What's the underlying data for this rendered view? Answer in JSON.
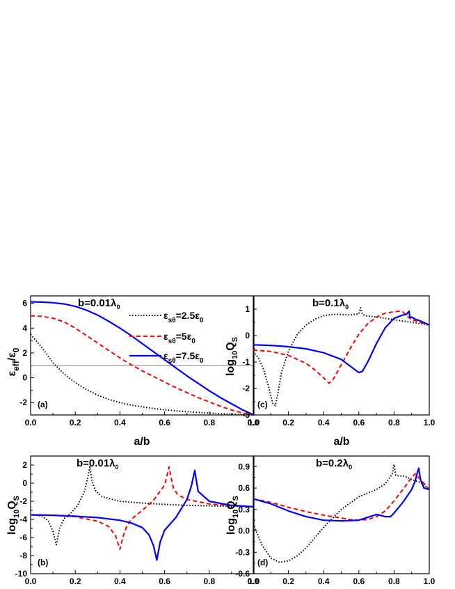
{
  "colors": {
    "series_1": "#000000",
    "series_2": "#ff0000",
    "series_3": "#0000ff",
    "refline": "#808080"
  },
  "legend": [
    {
      "sym": "ε",
      "sub": "sθ",
      "eq": "=2.5",
      "sym2": "ε",
      "sub2": "0"
    },
    {
      "sym": "ε",
      "sub": "sθ",
      "eq": "=5",
      "sym2": "ε",
      "sub2": "0"
    },
    {
      "sym": "ε",
      "sub": "sθ",
      "eq": "=7.5",
      "sym2": "ε",
      "sub2": "0"
    }
  ],
  "chart_data": [
    {
      "type": "line",
      "panel_label": "(a)",
      "title": {
        "main": "b=0.01λ",
        "sub": "0"
      },
      "xlabel": "a/b",
      "ylabel": {
        "p1": "ε",
        "s1": "eff",
        "p2": "/ε",
        "s2": "0"
      },
      "xlim": [
        0,
        1
      ],
      "ylim": [
        -3,
        6.6
      ],
      "xticks": [
        "0.0",
        "0.2",
        "0.4",
        "0.6",
        "0.8",
        "1.0"
      ],
      "yticks": [
        "-2",
        "0",
        "2",
        "4",
        "6"
      ],
      "hline": 1,
      "x": [
        0.0,
        0.05,
        0.1,
        0.15,
        0.2,
        0.25,
        0.3,
        0.35,
        0.4,
        0.45,
        0.5,
        0.55,
        0.6,
        0.65,
        0.7,
        0.75,
        0.8,
        0.85,
        0.9,
        0.95,
        1.0
      ],
      "series": [
        {
          "name": "εsθ=2.5ε0",
          "style": "dotted",
          "values": [
            3.5,
            2.45,
            1.2,
            0.3,
            -0.4,
            -0.95,
            -1.4,
            -1.75,
            -2.0,
            -2.2,
            -2.35,
            -2.48,
            -2.58,
            -2.67,
            -2.74,
            -2.8,
            -2.85,
            -2.9,
            -2.94,
            -2.97,
            -3.0
          ]
        },
        {
          "name": "εsθ=5ε0",
          "style": "dashed",
          "values": [
            5.0,
            4.95,
            4.8,
            4.5,
            4.0,
            3.4,
            2.8,
            2.2,
            1.6,
            1.05,
            0.55,
            0.1,
            -0.35,
            -0.8,
            -1.2,
            -1.6,
            -1.95,
            -2.3,
            -2.6,
            -2.85,
            -3.0
          ]
        },
        {
          "name": "εsθ=7.5ε0",
          "style": "solid",
          "values": [
            6.12,
            6.1,
            6.05,
            5.95,
            5.75,
            5.45,
            5.05,
            4.55,
            4.0,
            3.4,
            2.75,
            2.1,
            1.45,
            0.8,
            0.15,
            -0.45,
            -1.05,
            -1.6,
            -2.1,
            -2.6,
            -3.0
          ]
        }
      ]
    },
    {
      "type": "line",
      "panel_label": "(c)",
      "title": {
        "main": "b=0.1λ",
        "sub": "0"
      },
      "xlabel": "a/b",
      "ylabel": {
        "p1": "log",
        "s1": "10",
        "p2": "Q",
        "s2": "S"
      },
      "xlim": [
        0,
        1
      ],
      "ylim": [
        -3,
        1.5
      ],
      "xticks": [
        "0.0",
        "0.2",
        "0.4",
        "0.6",
        "0.8",
        "1.0"
      ],
      "yticks": [
        "-3",
        "-2",
        "-1",
        "0",
        "1"
      ],
      "series": [
        {
          "name": "εsθ=2.5ε0",
          "style": "dotted",
          "x": [
            0.0,
            0.03,
            0.06,
            0.09,
            0.11,
            0.125,
            0.14,
            0.16,
            0.2,
            0.25,
            0.3,
            0.35,
            0.4,
            0.45,
            0.5,
            0.55,
            0.6,
            0.61,
            0.62,
            0.64,
            0.7,
            0.75,
            0.8,
            0.85,
            0.9,
            0.95,
            1.0
          ],
          "values": [
            -0.6,
            -0.85,
            -1.3,
            -2.0,
            -2.55,
            -2.65,
            -2.2,
            -1.4,
            -0.6,
            0.05,
            0.4,
            0.62,
            0.75,
            0.8,
            0.8,
            0.78,
            0.82,
            1.05,
            0.8,
            0.75,
            0.7,
            0.65,
            0.6,
            0.55,
            0.5,
            0.45,
            0.4
          ]
        },
        {
          "name": "εsθ=5ε0",
          "style": "dashed",
          "x": [
            0.0,
            0.1,
            0.2,
            0.3,
            0.35,
            0.4,
            0.43,
            0.45,
            0.5,
            0.55,
            0.6,
            0.65,
            0.7,
            0.75,
            0.8,
            0.83,
            0.85,
            0.87,
            0.9,
            0.95,
            1.0
          ],
          "values": [
            -0.55,
            -0.6,
            -0.75,
            -1.05,
            -1.3,
            -1.6,
            -1.8,
            -1.7,
            -1.1,
            -0.5,
            0.05,
            0.45,
            0.7,
            0.85,
            0.9,
            0.92,
            0.9,
            0.75,
            0.6,
            0.5,
            0.4
          ]
        },
        {
          "name": "εsθ=7.5ε0",
          "style": "solid",
          "x": [
            0.0,
            0.1,
            0.2,
            0.3,
            0.4,
            0.5,
            0.55,
            0.6,
            0.62,
            0.65,
            0.7,
            0.75,
            0.8,
            0.85,
            0.87,
            0.885,
            0.89,
            0.9,
            0.92,
            0.95,
            1.0
          ],
          "values": [
            -0.35,
            -0.37,
            -0.42,
            -0.5,
            -0.65,
            -0.9,
            -1.15,
            -1.4,
            -1.35,
            -1.0,
            -0.3,
            0.3,
            0.65,
            0.78,
            0.8,
            0.92,
            0.68,
            0.7,
            0.62,
            0.55,
            0.4
          ]
        }
      ]
    },
    {
      "type": "line",
      "panel_label": "(b)",
      "title": {
        "main": "b=0.01λ",
        "sub": "0"
      },
      "xlabel": "",
      "ylabel": {
        "p1": "log",
        "s1": "10",
        "p2": "Q",
        "s2": "S"
      },
      "xlim": [
        0,
        1
      ],
      "ylim": [
        -10,
        3
      ],
      "xticks": [
        "0.0",
        "0.2",
        "0.4",
        "0.6",
        "0.8",
        "1.0"
      ],
      "yticks": [
        "-10",
        "-8",
        "-6",
        "-4",
        "-2",
        "0",
        "2"
      ],
      "series": [
        {
          "name": "εsθ=2.5ε0",
          "style": "dotted",
          "x": [
            0.0,
            0.05,
            0.08,
            0.1,
            0.115,
            0.13,
            0.15,
            0.18,
            0.21,
            0.24,
            0.255,
            0.265,
            0.275,
            0.29,
            0.32,
            0.4,
            0.5,
            0.6,
            0.7,
            0.8,
            0.9,
            1.0
          ],
          "values": [
            -3.5,
            -3.6,
            -4.2,
            -5.3,
            -6.8,
            -5.0,
            -3.9,
            -3.3,
            -2.5,
            -1.0,
            0.5,
            1.8,
            0.2,
            -0.8,
            -1.5,
            -2.0,
            -2.2,
            -2.35,
            -2.45,
            -2.5,
            -2.55,
            -2.6
          ]
        },
        {
          "name": "εsθ=5ε0",
          "style": "dashed",
          "x": [
            0.0,
            0.1,
            0.2,
            0.3,
            0.35,
            0.38,
            0.4,
            0.415,
            0.43,
            0.45,
            0.5,
            0.55,
            0.6,
            0.62,
            0.63,
            0.64,
            0.66,
            0.7,
            0.8,
            0.9,
            1.0
          ],
          "values": [
            -3.5,
            -3.55,
            -3.7,
            -4.2,
            -4.8,
            -5.8,
            -7.3,
            -5.8,
            -4.8,
            -4.0,
            -3.0,
            -1.9,
            -0.2,
            1.8,
            0.5,
            -0.6,
            -1.3,
            -1.8,
            -2.3,
            -2.5,
            -2.6
          ]
        },
        {
          "name": "εsθ=7.5ε0",
          "style": "solid",
          "x": [
            0.0,
            0.1,
            0.2,
            0.3,
            0.4,
            0.45,
            0.5,
            0.53,
            0.55,
            0.565,
            0.58,
            0.6,
            0.65,
            0.7,
            0.72,
            0.735,
            0.75,
            0.8,
            0.9,
            1.0
          ],
          "values": [
            -3.5,
            -3.55,
            -3.65,
            -3.8,
            -4.1,
            -4.4,
            -4.9,
            -5.7,
            -6.9,
            -8.5,
            -6.5,
            -5.2,
            -3.8,
            -1.8,
            -0.3,
            1.4,
            -0.9,
            -2.0,
            -2.45,
            -2.6
          ]
        }
      ]
    },
    {
      "type": "line",
      "panel_label": "(d)",
      "title": {
        "main": "b=0.2λ",
        "sub": "0"
      },
      "xlabel": "",
      "ylabel": {
        "p1": "log",
        "s1": "10",
        "p2": "Q",
        "s2": "S"
      },
      "xlim": [
        0,
        1
      ],
      "ylim": [
        -0.6,
        1.05
      ],
      "xticks": [
        "0.0",
        "0.2",
        "0.4",
        "0.6",
        "0.8",
        "1.0"
      ],
      "yticks": [
        "-0.6",
        "-0.3",
        "0.0",
        "0.3",
        "0.6",
        "0.9"
      ],
      "series": [
        {
          "name": "εsθ=2.5ε0",
          "style": "dotted",
          "x": [
            0.0,
            0.05,
            0.1,
            0.15,
            0.2,
            0.25,
            0.3,
            0.4,
            0.5,
            0.6,
            0.7,
            0.75,
            0.79,
            0.8,
            0.81,
            0.83,
            0.86,
            0.9,
            0.95,
            1.0
          ],
          "values": [
            0.1,
            -0.2,
            -0.38,
            -0.44,
            -0.42,
            -0.35,
            -0.24,
            0.05,
            0.3,
            0.48,
            0.58,
            0.66,
            0.8,
            0.93,
            0.78,
            0.77,
            0.77,
            0.72,
            0.68,
            0.58
          ]
        },
        {
          "name": "εsθ=5ε0",
          "style": "dashed",
          "x": [
            0.0,
            0.1,
            0.2,
            0.3,
            0.4,
            0.5,
            0.55,
            0.6,
            0.65,
            0.7,
            0.75,
            0.8,
            0.85,
            0.88,
            0.9,
            0.92,
            0.95,
            1.0
          ],
          "values": [
            0.45,
            0.4,
            0.33,
            0.27,
            0.22,
            0.18,
            0.16,
            0.15,
            0.16,
            0.2,
            0.28,
            0.42,
            0.58,
            0.68,
            0.75,
            0.8,
            0.72,
            0.58
          ]
        },
        {
          "name": "εsθ=7.5ε0",
          "style": "solid",
          "x": [
            0.0,
            0.1,
            0.2,
            0.3,
            0.4,
            0.5,
            0.6,
            0.65,
            0.7,
            0.72,
            0.75,
            0.78,
            0.8,
            0.85,
            0.9,
            0.92,
            0.93,
            0.94,
            0.95,
            0.97,
            1.0
          ],
          "values": [
            0.45,
            0.38,
            0.28,
            0.2,
            0.15,
            0.14,
            0.15,
            0.19,
            0.23,
            0.22,
            0.2,
            0.2,
            0.25,
            0.4,
            0.58,
            0.7,
            0.8,
            0.88,
            0.72,
            0.6,
            0.58
          ]
        }
      ]
    }
  ]
}
